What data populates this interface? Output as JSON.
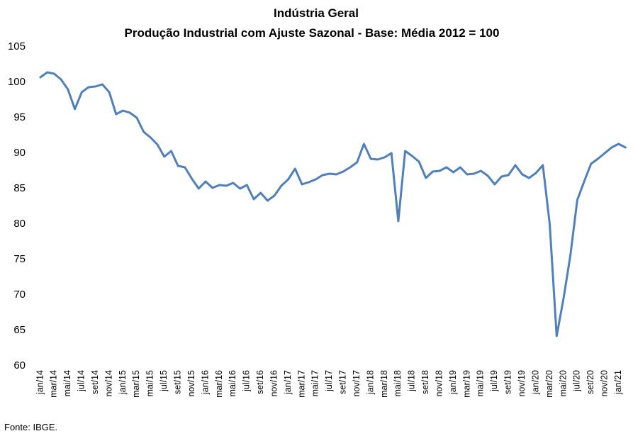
{
  "chart_data": {
    "type": "line",
    "title": "Indústria Geral",
    "subtitle": "Produção Industrial com Ajuste Sazonal - Base: Média 2012 = 100",
    "source": "Fonte: IBGE.",
    "categories": [
      "jan/14",
      null,
      "mar/14",
      null,
      "mai/14",
      null,
      "jul/14",
      null,
      "set/14",
      null,
      "nov/14",
      null,
      "jan/15",
      null,
      "mar/15",
      null,
      "mai/15",
      null,
      "jul/15",
      null,
      "set/15",
      null,
      "nov/15",
      null,
      "jan/16",
      null,
      "mar/16",
      null,
      "mai/16",
      null,
      "jul/16",
      null,
      "set/16",
      null,
      "nov/16",
      null,
      "jan/17",
      null,
      "mar/17",
      null,
      "mai/17",
      null,
      "jul/17",
      null,
      "set/17",
      null,
      "nov/17",
      null,
      "jan/18",
      null,
      "mar/18",
      null,
      "mai/18",
      null,
      "jul/18",
      null,
      "set/18",
      null,
      "nov/18",
      null,
      "jan/19",
      null,
      "mar/19",
      null,
      "mai/19",
      null,
      "jul/19",
      null,
      "set/19",
      null,
      "nov/19",
      null,
      "jan/20",
      null,
      "mar/20",
      null,
      "mai/20",
      null,
      "jul/20",
      null,
      "set/20",
      null,
      "nov/20",
      null,
      "jan/21",
      null
    ],
    "values": [
      100.7,
      101.4,
      101.2,
      100.4,
      99.0,
      96.2,
      98.6,
      99.3,
      99.4,
      99.7,
      98.6,
      95.5,
      96.0,
      95.7,
      95.0,
      93.0,
      92.2,
      91.2,
      89.5,
      90.3,
      88.2,
      88.0,
      86.4,
      85.0,
      86.0,
      85.1,
      85.5,
      85.4,
      85.8,
      85.0,
      85.5,
      83.5,
      84.4,
      83.3,
      84.0,
      85.4,
      86.3,
      87.8,
      85.6,
      85.9,
      86.3,
      86.9,
      87.1,
      87.0,
      87.4,
      88.0,
      88.7,
      91.3,
      89.2,
      89.1,
      89.4,
      90.0,
      80.4,
      90.3,
      89.6,
      88.8,
      86.5,
      87.4,
      87.5,
      88.0,
      87.3,
      88.0,
      87.0,
      87.1,
      87.5,
      86.8,
      85.6,
      86.7,
      86.9,
      88.3,
      87.0,
      86.5,
      87.2,
      88.3,
      80.0,
      64.2,
      69.5,
      75.6,
      83.4,
      86.0,
      88.5,
      89.2,
      90.0,
      90.8,
      91.3,
      90.8
    ],
    "color": "#4f7fbd",
    "ylim": [
      60,
      105
    ],
    "yticks": [
      60,
      65,
      70,
      75,
      80,
      85,
      90,
      95,
      100,
      105
    ],
    "grid": false
  }
}
